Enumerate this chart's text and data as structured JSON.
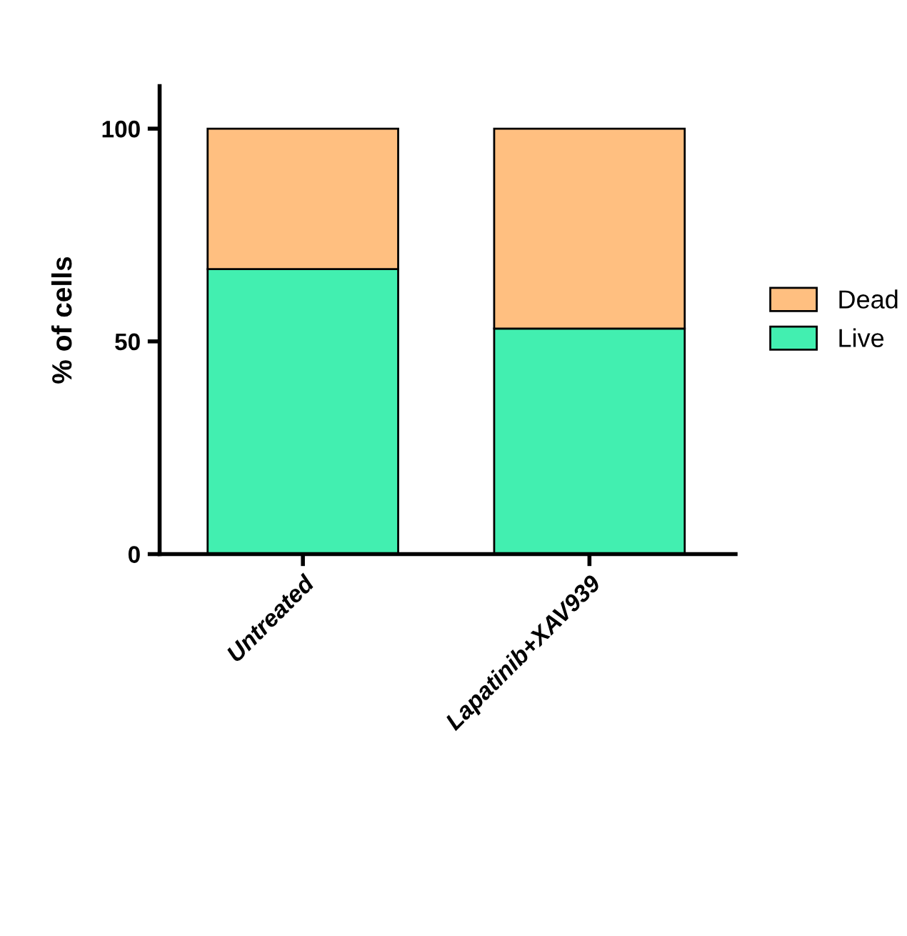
{
  "chart_data": {
    "type": "bar",
    "stacked": true,
    "ylabel": "% of cells",
    "categories": [
      "Untreated",
      "Lapatinib+XAV939"
    ],
    "series": [
      {
        "name": "Live",
        "color": "#42efb0",
        "values": [
          67,
          53
        ]
      },
      {
        "name": "Dead",
        "color": "#ffbf80",
        "values": [
          33,
          47
        ]
      }
    ],
    "ylim": [
      0,
      110
    ],
    "yticks": [
      0,
      50,
      100
    ],
    "grid": false,
    "legend": "right"
  }
}
